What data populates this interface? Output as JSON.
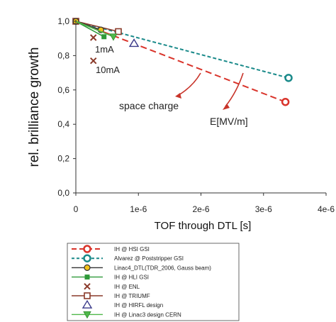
{
  "chart_data": {
    "type": "line",
    "xlabel": "TOF through DTL [s]",
    "ylabel": "rel. brilliance growth",
    "xlim": [
      0,
      4e-06
    ],
    "ylim": [
      0,
      1.0
    ],
    "x_ticks": [
      "0",
      "1e-6",
      "2e-6",
      "3e-6",
      "4e-6"
    ],
    "y_ticks": [
      "0,0",
      "0,2",
      "0,4",
      "0,6",
      "0,8",
      "1,0"
    ],
    "grid": false,
    "legend_placement": "below",
    "annotations": {
      "space_charge": "space charge",
      "e_field": "E[MV/m]",
      "current_1mA": "1mA",
      "current_10mA": "10mA"
    },
    "series": [
      {
        "name": "IH @ HSI GSI",
        "color": "#d9342b",
        "line": "dashed",
        "marker": "circle",
        "points": [
          [
            0,
            1.0
          ],
          [
            3.35e-06,
            0.53
          ]
        ]
      },
      {
        "name": "Alvarez @ Poststripper GSI",
        "color": "#1a8a8a",
        "line": "dashed",
        "marker": "circle",
        "points": [
          [
            0,
            1.0
          ],
          [
            3.4e-06,
            0.67
          ]
        ]
      },
      {
        "name": "Linac4_DTL(TDR_2006, Gauss beam)",
        "color": "#333333",
        "line": "solid",
        "marker": "circle-filled",
        "points": [
          [
            0,
            1.0
          ],
          [
            4e-07,
            0.95
          ]
        ]
      },
      {
        "name": "IH @ HLI GSI",
        "color": "#2f9a3a",
        "line": "solid",
        "marker": "square-filled",
        "points": [
          [
            0,
            1.0
          ],
          [
            4.5e-07,
            0.91
          ]
        ]
      },
      {
        "name": "IH @ ENL",
        "color": "#8a3a2a",
        "line": "none",
        "marker": "x",
        "points": [
          [
            2.8e-07,
            0.905
          ],
          [
            2.8e-07,
            0.77
          ]
        ]
      },
      {
        "name": "IH @ TRIUMF",
        "color": "#8a3a2a",
        "line": "solid",
        "marker": "square",
        "points": [
          [
            0,
            1.0
          ],
          [
            6.8e-07,
            0.94
          ]
        ]
      },
      {
        "name": "IH @ HIRFL design",
        "color": "#3a3a8a",
        "line": "none",
        "marker": "triangle",
        "points": [
          [
            9.3e-07,
            0.87
          ]
        ]
      },
      {
        "name": "IH @ Linac3 design CERN",
        "color": "#4fb84a",
        "line": "solid",
        "marker": "triangle-down-filled",
        "points": [
          [
            0,
            1.0
          ],
          [
            6e-07,
            0.91
          ]
        ]
      }
    ]
  }
}
